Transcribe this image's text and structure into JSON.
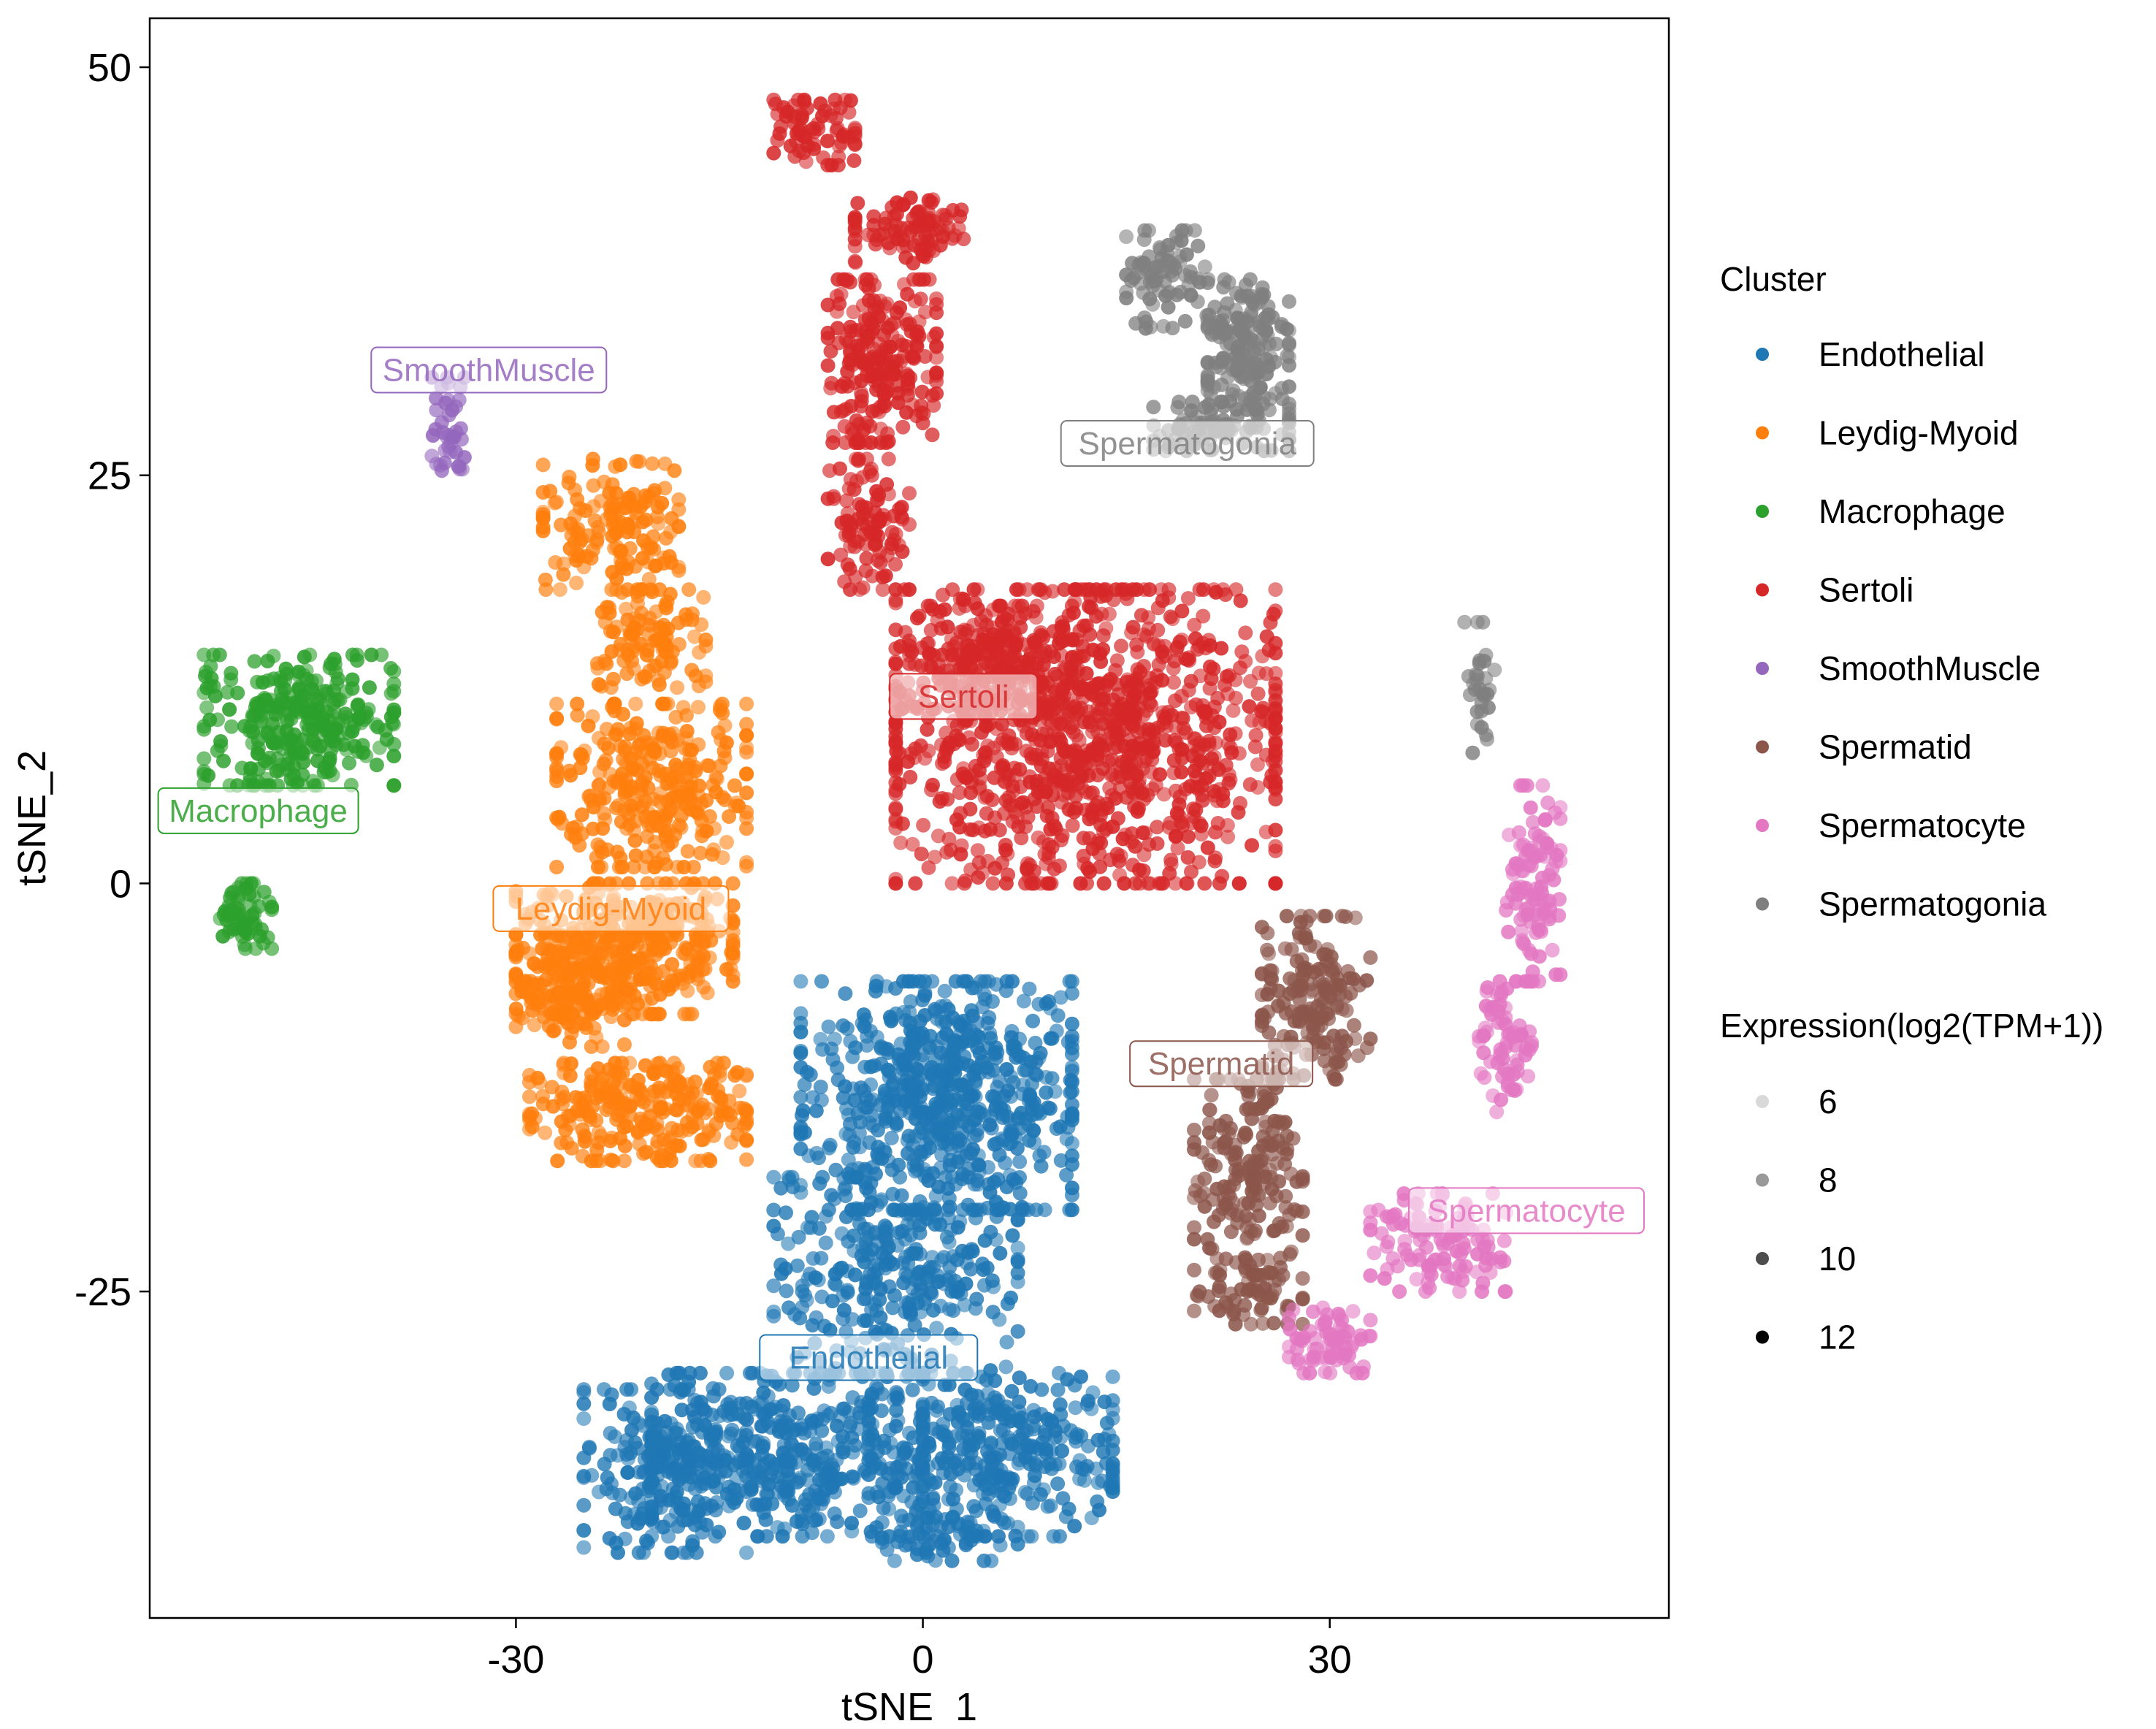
{
  "chart_data": {
    "type": "scatter",
    "xlabel": "tSNE_1",
    "ylabel": "tSNE_2",
    "xlim": [
      -57,
      55
    ],
    "ylim": [
      -45,
      53
    ],
    "x_ticks": [
      -30,
      0,
      30
    ],
    "y_ticks": [
      50,
      25,
      0,
      -25
    ],
    "x_tick_labels": [
      "-30",
      "0",
      "30"
    ],
    "y_tick_labels": [
      "50",
      "25",
      "0",
      "-25"
    ],
    "grid": false,
    "legend_position": "right",
    "legend_title_color": "Cluster",
    "legend_title_size": "Expression(log2(TPM+1))",
    "size_legend_values": [
      6,
      8,
      10,
      12
    ],
    "size_legend_labels": [
      "6",
      "8",
      "10",
      "12"
    ],
    "series": [
      {
        "name": "Endothelial",
        "color": "#1F77B4",
        "label_pos": [
          -4,
          -29
        ],
        "blobs": [
          [
            1,
            -13,
            10,
            7,
            650
          ],
          [
            -2,
            -24,
            9,
            6,
            320
          ],
          [
            -10,
            -35,
            10,
            5,
            420
          ],
          [
            5,
            -35,
            9,
            5,
            360
          ],
          [
            -19,
            -36,
            6,
            5,
            210
          ],
          [
            2,
            -40,
            5,
            1.5,
            60
          ]
        ]
      },
      {
        "name": "Leydig-Myoid",
        "color": "#FF7F0E",
        "label_pos": [
          -23,
          -1.5
        ],
        "blobs": [
          [
            -23,
            22,
            5,
            4,
            150
          ],
          [
            -20,
            15,
            4,
            3,
            110
          ],
          [
            -20,
            6,
            7,
            5,
            300
          ],
          [
            -22,
            -4,
            8,
            4,
            420
          ],
          [
            -26,
            -7,
            4,
            3,
            120
          ],
          [
            -21,
            -14,
            8,
            3,
            260
          ]
        ]
      },
      {
        "name": "Macrophage",
        "color": "#2CA02C",
        "label_pos": [
          -49,
          4.5
        ],
        "blobs": [
          [
            -46,
            10,
            7,
            4,
            300
          ],
          [
            -50,
            -2,
            2,
            2,
            60
          ]
        ]
      },
      {
        "name": "Sertoli",
        "color": "#D62728",
        "label_pos": [
          3,
          11.5
        ],
        "blobs": [
          [
            -8,
            46,
            3,
            2,
            70
          ],
          [
            -1,
            40,
            4,
            2,
            90
          ],
          [
            -3,
            32,
            4,
            5,
            230
          ],
          [
            -4,
            22,
            3,
            4,
            100
          ],
          [
            12,
            9,
            14,
            9,
            1100
          ],
          [
            5,
            14,
            6,
            3,
            150
          ]
        ]
      },
      {
        "name": "SmoothMuscle",
        "color": "#9467BD",
        "label_pos": [
          -32,
          31.5
        ],
        "blobs": [
          [
            -35,
            28,
            1.2,
            3,
            40
          ]
        ]
      },
      {
        "name": "Spermatid",
        "color": "#8C564B",
        "label_pos": [
          22,
          -11
        ],
        "blobs": [
          [
            29,
            -7,
            4,
            5,
            180
          ],
          [
            24,
            -18,
            4,
            6,
            200
          ],
          [
            24,
            -25,
            4,
            2,
            60
          ]
        ]
      },
      {
        "name": "Spermatocyte",
        "color": "#E377C2",
        "label_pos": [
          44.5,
          -20
        ],
        "blobs": [
          [
            45,
            0,
            2,
            6,
            110
          ],
          [
            43,
            -10,
            2,
            4,
            70
          ],
          [
            38,
            -22,
            5,
            3,
            120
          ],
          [
            30,
            -28,
            3,
            2,
            70
          ]
        ]
      },
      {
        "name": "Spermatogonia",
        "color": "#7F7F7F",
        "label_pos": [
          19.5,
          27
        ],
        "blobs": [
          [
            18,
            37,
            3,
            3,
            80
          ],
          [
            24,
            33,
            3,
            4,
            170
          ],
          [
            22,
            28,
            5,
            1.5,
            90
          ],
          [
            41,
            12,
            1.2,
            4,
            30
          ]
        ]
      }
    ],
    "labels": [
      "Endothelial",
      "Leydig-Myoid",
      "Macrophage",
      "Sertoli",
      "SmoothMuscle",
      "Spermatid",
      "Spermatocyte",
      "Spermatogonia"
    ],
    "note_point_density": "points are distributed within each cluster's approximate extent (center x, center y, spread x, spread y, count) in tSNE units"
  }
}
